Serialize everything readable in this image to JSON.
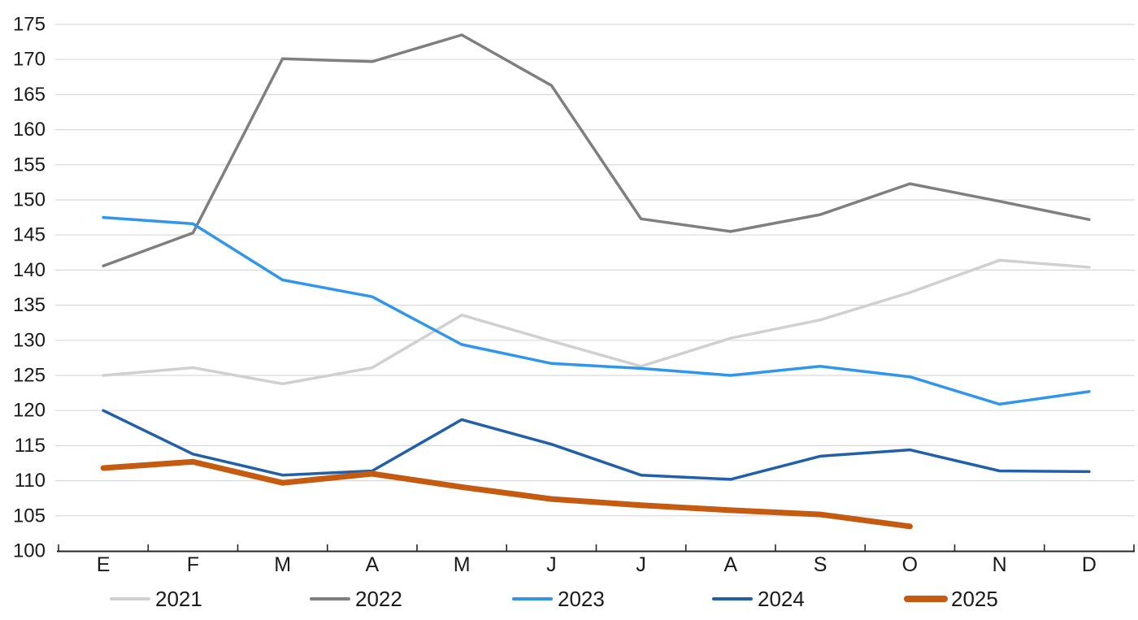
{
  "chart_data": {
    "type": "line",
    "title": "",
    "categories": [
      "E",
      "F",
      "M",
      "A",
      "M",
      "J",
      "J",
      "A",
      "S",
      "O",
      "N",
      "D"
    ],
    "y_axis": {
      "min": 100,
      "max": 175,
      "step": 5,
      "tick_labels": [
        "100",
        "105",
        "110",
        "115",
        "120",
        "125",
        "130",
        "135",
        "140",
        "145",
        "150",
        "155",
        "160",
        "165",
        "170",
        "175"
      ]
    },
    "grid": true,
    "legend_position": "bottom",
    "series": [
      {
        "name": "2021",
        "color": "#d0d0d0",
        "stroke_width": 3.5,
        "values": [
          125.0,
          126.1,
          123.8,
          126.1,
          133.6,
          129.9,
          126.3,
          130.3,
          132.9,
          136.8,
          141.4,
          140.4
        ]
      },
      {
        "name": "2022",
        "color": "#7f7f7f",
        "stroke_width": 3.5,
        "values": [
          140.6,
          145.3,
          170.1,
          169.7,
          173.5,
          166.3,
          147.3,
          145.5,
          147.9,
          152.3,
          149.8,
          147.2
        ]
      },
      {
        "name": "2023",
        "color": "#2f96ec",
        "stroke_width": 3.5,
        "values": [
          147.5,
          146.6,
          138.6,
          136.2,
          129.4,
          126.7,
          126.0,
          125.0,
          126.3,
          124.8,
          120.9,
          122.7
        ]
      },
      {
        "name": "2024",
        "color": "#2160a8",
        "stroke_width": 3.5,
        "values": [
          120.0,
          113.8,
          110.8,
          111.4,
          118.7,
          115.2,
          110.8,
          110.2,
          113.5,
          114.4,
          111.4,
          111.3
        ]
      },
      {
        "name": "2025",
        "color": "#c55a11",
        "stroke_width": 7,
        "values": [
          111.8,
          112.7,
          109.7,
          111.0,
          109.1,
          107.4,
          106.5,
          105.8,
          105.2,
          103.5
        ]
      }
    ]
  },
  "styles": {
    "grid_color": "#d9d9d9",
    "axis_color": "#262626",
    "label_color": "#1a1a1a",
    "background": "#ffffff"
  }
}
